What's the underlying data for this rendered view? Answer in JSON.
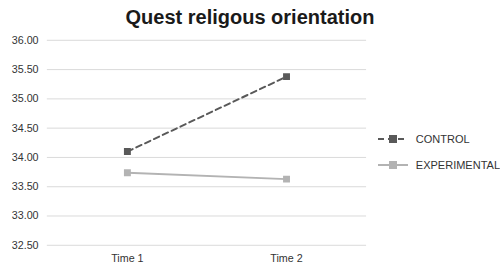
{
  "chart_data": {
    "type": "line",
    "title": "Quest religous orientation",
    "categories": [
      "Time 1",
      "Time 2"
    ],
    "series": [
      {
        "name": "CONTROL",
        "color": "#595959",
        "values": [
          34.1,
          35.38
        ],
        "marker": "square",
        "line_style": "dashed"
      },
      {
        "name": "EXPERIMENTAL",
        "color": "#b3b3b3",
        "values": [
          33.74,
          33.63
        ],
        "marker": "square",
        "line_style": "solid"
      }
    ],
    "ylim": [
      32.5,
      36
    ],
    "yticks": [
      {
        "value": 32.5,
        "label": "32.50"
      },
      {
        "value": 33,
        "label": "33.00"
      },
      {
        "value": 33.5,
        "label": "33.50"
      },
      {
        "value": 34,
        "label": "34.00"
      },
      {
        "value": 34.5,
        "label": "34.50"
      },
      {
        "value": 35,
        "label": "35.00"
      },
      {
        "value": 35.5,
        "label": "35.50"
      },
      {
        "value": 36,
        "label": "36.00"
      }
    ],
    "grid": true,
    "legend": "right"
  }
}
